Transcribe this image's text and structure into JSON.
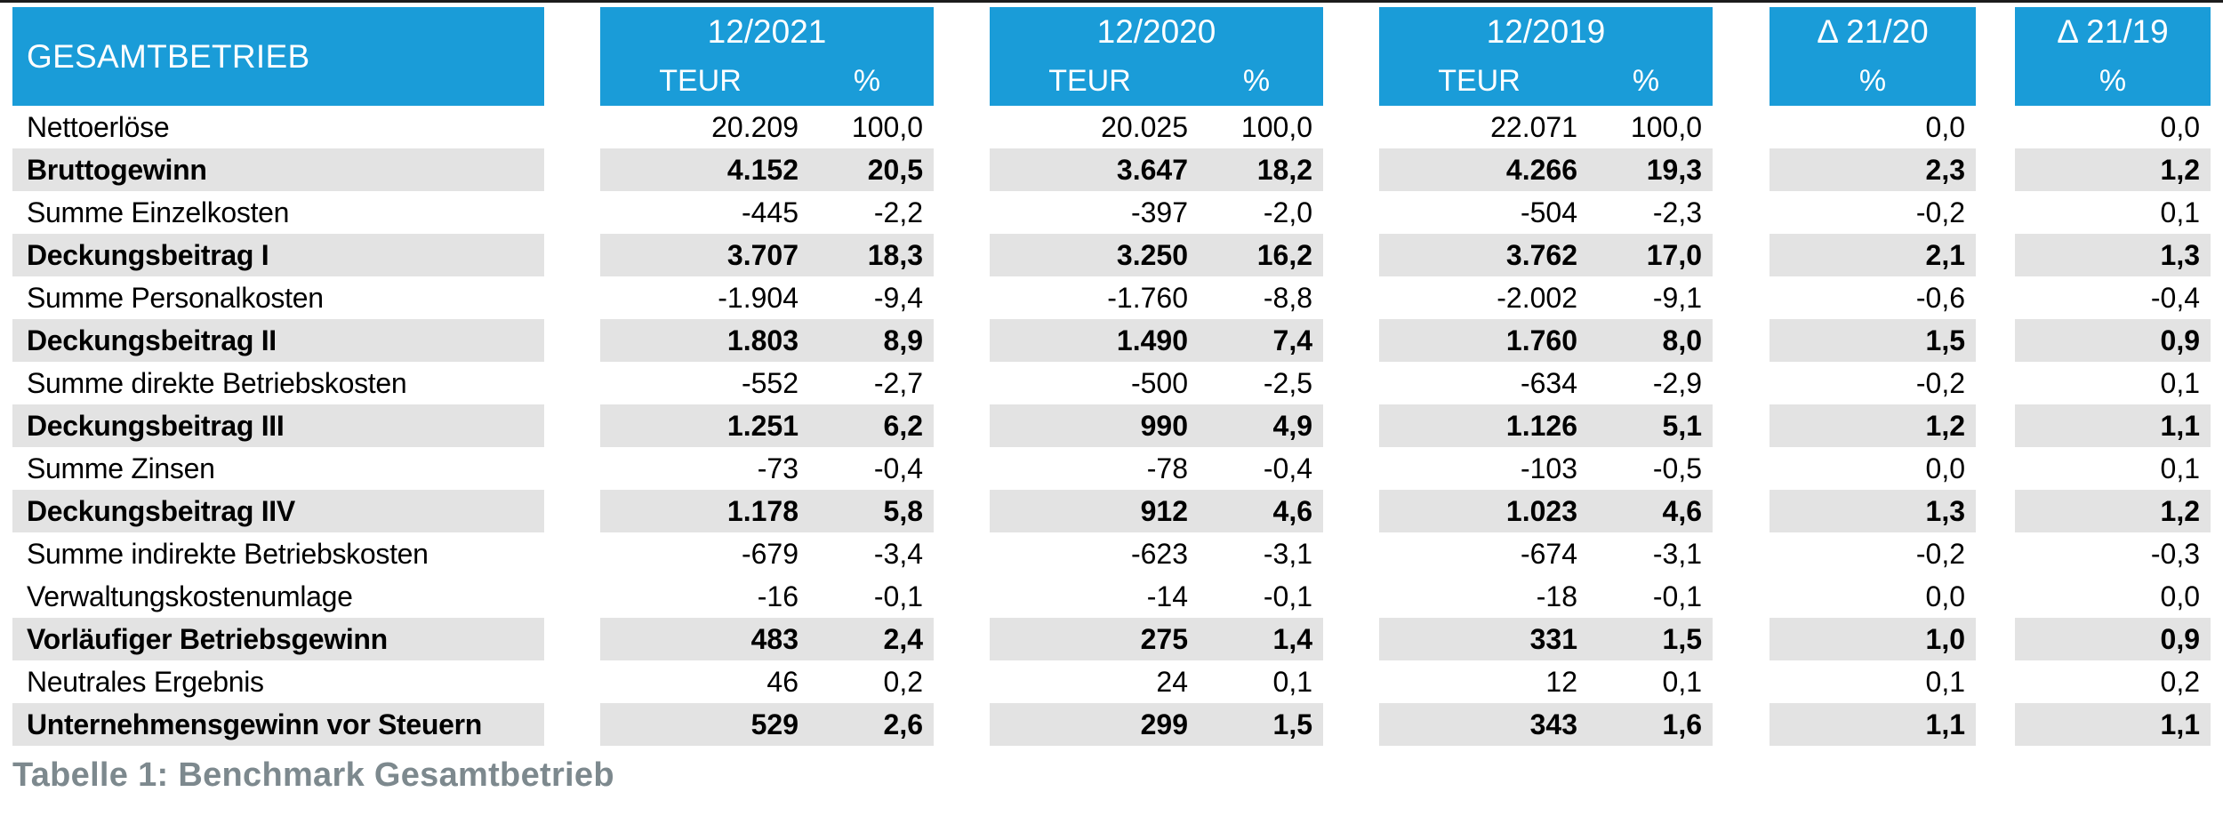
{
  "page": {
    "top_border_color": "#1c1c1c",
    "background_color": "#ffffff"
  },
  "colors": {
    "header_blue": "#1a9cd8",
    "header_text": "#ffffff",
    "row_band_gray": "#e3e3e3",
    "body_text": "#000000",
    "caption_gray": "#7d898e"
  },
  "table": {
    "title": "GESAMTBETRIEB",
    "column_groups": [
      {
        "label": "12/2021",
        "sub": [
          "TEUR",
          "%"
        ]
      },
      {
        "label": "12/2020",
        "sub": [
          "TEUR",
          "%"
        ]
      },
      {
        "label": "12/2019",
        "sub": [
          "TEUR",
          "%"
        ]
      },
      {
        "label": "Δ 21/20",
        "sub": [
          "%"
        ]
      },
      {
        "label": "Δ 21/19",
        "sub": [
          "%"
        ]
      }
    ],
    "rows": [
      {
        "label": "Nettoerlöse",
        "emphasis": false,
        "values": [
          "20.209",
          "100,0",
          "20.025",
          "100,0",
          "22.071",
          "100,0",
          "0,0",
          "0,0"
        ]
      },
      {
        "label": "Bruttogewinn",
        "emphasis": true,
        "values": [
          "4.152",
          "20,5",
          "3.647",
          "18,2",
          "4.266",
          "19,3",
          "2,3",
          "1,2"
        ]
      },
      {
        "label": "Summe Einzelkosten",
        "emphasis": false,
        "values": [
          "-445",
          "-2,2",
          "-397",
          "-2,0",
          "-504",
          "-2,3",
          "-0,2",
          "0,1"
        ]
      },
      {
        "label": "Deckungsbeitrag I",
        "emphasis": true,
        "values": [
          "3.707",
          "18,3",
          "3.250",
          "16,2",
          "3.762",
          "17,0",
          "2,1",
          "1,3"
        ]
      },
      {
        "label": "Summe Personalkosten",
        "emphasis": false,
        "values": [
          "-1.904",
          "-9,4",
          "-1.760",
          "-8,8",
          "-2.002",
          "-9,1",
          "-0,6",
          "-0,4"
        ]
      },
      {
        "label": "Deckungsbeitrag II",
        "emphasis": true,
        "values": [
          "1.803",
          "8,9",
          "1.490",
          "7,4",
          "1.760",
          "8,0",
          "1,5",
          "0,9"
        ]
      },
      {
        "label": "Summe direkte Betriebskosten",
        "emphasis": false,
        "values": [
          "-552",
          "-2,7",
          "-500",
          "-2,5",
          "-634",
          "-2,9",
          "-0,2",
          "0,1"
        ]
      },
      {
        "label": "Deckungsbeitrag III",
        "emphasis": true,
        "values": [
          "1.251",
          "6,2",
          "990",
          "4,9",
          "1.126",
          "5,1",
          "1,2",
          "1,1"
        ]
      },
      {
        "label": "Summe Zinsen",
        "emphasis": false,
        "values": [
          "-73",
          "-0,4",
          "-78",
          "-0,4",
          "-103",
          "-0,5",
          "0,0",
          "0,1"
        ]
      },
      {
        "label": "Deckungsbeitrag IIV",
        "emphasis": true,
        "values": [
          "1.178",
          "5,8",
          "912",
          "4,6",
          "1.023",
          "4,6",
          "1,3",
          "1,2"
        ]
      },
      {
        "label": "Summe indirekte Betriebskosten",
        "emphasis": false,
        "values": [
          "-679",
          "-3,4",
          "-623",
          "-3,1",
          "-674",
          "-3,1",
          "-0,2",
          "-0,3"
        ]
      },
      {
        "label": "Verwaltungskostenumlage",
        "emphasis": false,
        "values": [
          "-16",
          "-0,1",
          "-14",
          "-0,1",
          "-18",
          "-0,1",
          "0,0",
          "0,0"
        ]
      },
      {
        "label": "Vorläufiger Betriebsgewinn",
        "emphasis": true,
        "values": [
          "483",
          "2,4",
          "275",
          "1,4",
          "331",
          "1,5",
          "1,0",
          "0,9"
        ]
      },
      {
        "label": "Neutrales Ergebnis",
        "emphasis": false,
        "values": [
          "46",
          "0,2",
          "24",
          "0,1",
          "12",
          "0,1",
          "0,1",
          "0,2"
        ]
      },
      {
        "label": "Unternehmensgewinn vor Steuern",
        "emphasis": true,
        "values": [
          "529",
          "2,6",
          "299",
          "1,5",
          "343",
          "1,6",
          "1,1",
          "1,1"
        ]
      }
    ]
  },
  "caption": "Tabelle 1: Benchmark Gesamtbetrieb"
}
